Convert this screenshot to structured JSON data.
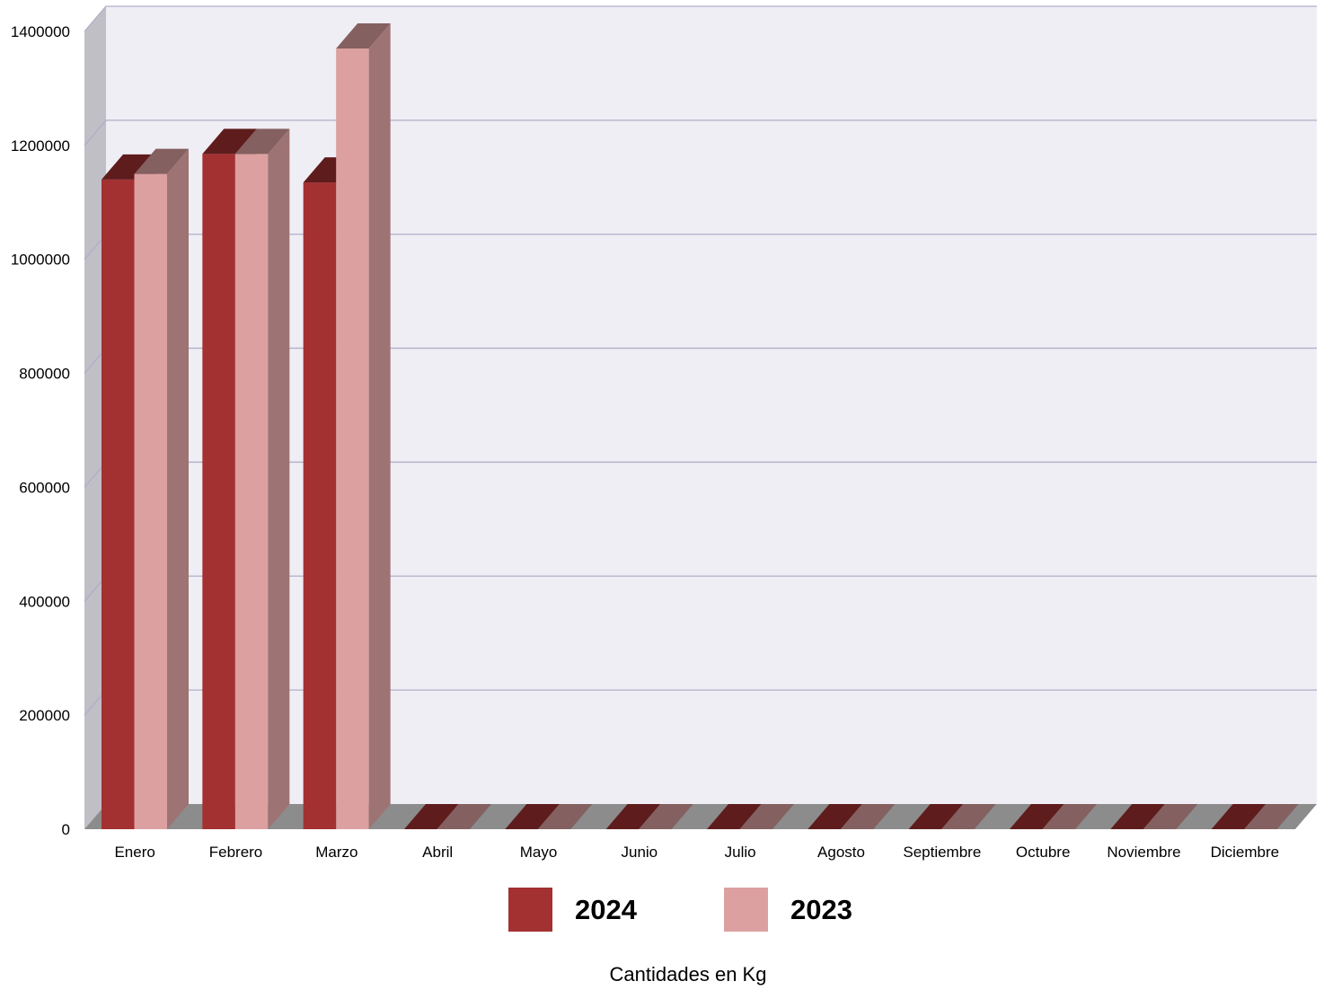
{
  "chart_data": {
    "type": "bar",
    "style": "3d-clustered-column",
    "categories": [
      "Enero",
      "Febrero",
      "Marzo",
      "Abril",
      "Mayo",
      "Junio",
      "Julio",
      "Agosto",
      "Septiembre",
      "Octubre",
      "Noviembre",
      "Diciembre"
    ],
    "series": [
      {
        "name": "2024",
        "color": "#a33131",
        "values": [
          1140000,
          1185000,
          1135000,
          0,
          0,
          0,
          0,
          0,
          0,
          0,
          0,
          0
        ]
      },
      {
        "name": "2023",
        "color": "#dca0a0",
        "values": [
          1150000,
          1185000,
          1370000,
          0,
          0,
          0,
          0,
          0,
          0,
          0,
          0,
          0
        ]
      }
    ],
    "ylim": [
      0,
      1400000
    ],
    "yticks": [
      "0",
      "200000",
      "400000",
      "600000",
      "800000",
      "1000000",
      "1200000",
      "1400000"
    ],
    "xlabel": "Cantidades en Kg",
    "ylabel": "",
    "title": "",
    "grid": true,
    "legend_position": "bottom",
    "colors": {
      "wall": "#efeef4",
      "side_wall": "#c0bfc6",
      "floor": "#8c8c8c",
      "gridline": "#b0aec8"
    }
  }
}
